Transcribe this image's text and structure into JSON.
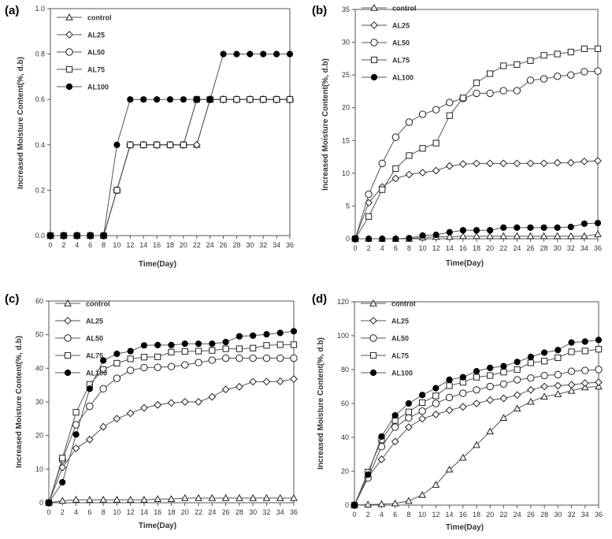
{
  "figure": {
    "colors": {
      "line": "#555555",
      "marker_stroke": "#222222",
      "axis": "#555555",
      "text": "#333333",
      "filled_marker": "#000000",
      "open_marker": "#ffffff"
    }
  },
  "chart_data": [
    {
      "panel": "(a)",
      "type": "line",
      "xlabel": "Time(Day)",
      "ylabel": "Increased Moisture Content(%, d.b)",
      "xlim": [
        0,
        36
      ],
      "ylim": [
        0,
        1.0
      ],
      "xticks": [
        "0",
        "2",
        "4",
        "6",
        "8",
        "10",
        "12",
        "14",
        "16",
        "18",
        "20",
        "22",
        "24",
        "26",
        "28",
        "30",
        "32",
        "34",
        "36"
      ],
      "yticks": [
        "0.0",
        "0.2",
        "0.4",
        "0.6",
        "0.8",
        "1.0"
      ],
      "legend_position": "top-left",
      "x": [
        0,
        2,
        4,
        6,
        8,
        10,
        12,
        14,
        16,
        18,
        20,
        22,
        24,
        26,
        28,
        30,
        32,
        34,
        36
      ],
      "series": [
        {
          "name": "control",
          "marker": "triangle-open",
          "values": [
            0,
            0,
            0,
            0,
            0,
            0.2,
            0.4,
            0.4,
            0.4,
            0.4,
            0.4,
            0.4,
            0.6,
            0.6,
            0.6,
            0.6,
            0.6,
            0.6,
            0.6
          ]
        },
        {
          "name": "AL25",
          "marker": "diamond-open",
          "values": [
            0,
            0,
            0,
            0,
            0,
            0.2,
            0.4,
            0.4,
            0.4,
            0.4,
            0.4,
            0.4,
            0.6,
            0.6,
            0.6,
            0.6,
            0.6,
            0.6,
            0.6
          ]
        },
        {
          "name": "AL50",
          "marker": "circle-open",
          "values": [
            0,
            0,
            0,
            0,
            0,
            0.2,
            0.4,
            0.4,
            0.4,
            0.4,
            0.4,
            0.6,
            0.6,
            0.6,
            0.6,
            0.6,
            0.6,
            0.6,
            0.6
          ]
        },
        {
          "name": "AL75",
          "marker": "square-open",
          "values": [
            0,
            0,
            0,
            0,
            0,
            0.2,
            0.4,
            0.4,
            0.4,
            0.4,
            0.4,
            0.6,
            0.6,
            0.6,
            0.6,
            0.6,
            0.6,
            0.6,
            0.6
          ]
        },
        {
          "name": "AL100",
          "marker": "circle-filled",
          "values": [
            0,
            0,
            0,
            0,
            0,
            0.4,
            0.6,
            0.6,
            0.6,
            0.6,
            0.6,
            0.6,
            0.6,
            0.8,
            0.8,
            0.8,
            0.8,
            0.8,
            0.8
          ]
        }
      ]
    },
    {
      "panel": "(b)",
      "type": "line",
      "xlabel": "Time(Day)",
      "ylabel": "Increased Moisture Content(%, d.b)",
      "xlim": [
        0,
        36
      ],
      "ylim": [
        0,
        35
      ],
      "xticks": [
        "0",
        "2",
        "4",
        "6",
        "8",
        "10",
        "12",
        "14",
        "16",
        "18",
        "20",
        "22",
        "24",
        "26",
        "28",
        "30",
        "32",
        "34",
        "36"
      ],
      "yticks": [
        "0",
        "5",
        "10",
        "15",
        "20",
        "25",
        "30",
        "35"
      ],
      "legend_position": "top-left",
      "x": [
        0,
        2,
        4,
        6,
        8,
        10,
        12,
        14,
        16,
        18,
        20,
        22,
        24,
        26,
        28,
        30,
        32,
        34,
        36
      ],
      "series": [
        {
          "name": "control",
          "marker": "triangle-open",
          "values": [
            0,
            0,
            0,
            0,
            0,
            0.2,
            0.3,
            0.3,
            0.4,
            0.4,
            0.4,
            0.4,
            0.4,
            0.4,
            0.4,
            0.4,
            0.4,
            0.4,
            0.7
          ]
        },
        {
          "name": "AL25",
          "marker": "diamond-open",
          "values": [
            0,
            5.5,
            7.9,
            9.2,
            9.8,
            10.1,
            10.4,
            11.1,
            11.4,
            11.5,
            11.5,
            11.5,
            11.5,
            11.5,
            11.5,
            11.6,
            11.6,
            11.8,
            11.9
          ]
        },
        {
          "name": "AL50",
          "marker": "circle-open",
          "values": [
            0,
            6.8,
            11.5,
            15.5,
            17.8,
            19.0,
            19.7,
            20.8,
            21.4,
            22.2,
            22.2,
            22.6,
            22.6,
            24.2,
            24.4,
            24.8,
            25.0,
            25.5,
            25.6
          ]
        },
        {
          "name": "AL75",
          "marker": "square-open",
          "values": [
            0,
            3.4,
            7.5,
            10.7,
            12.7,
            13.8,
            14.6,
            18.8,
            21.5,
            23.8,
            25.2,
            26.4,
            26.6,
            27.2,
            28.0,
            28.2,
            28.5,
            29.0,
            29.0
          ]
        },
        {
          "name": "AL100",
          "marker": "circle-filled",
          "values": [
            0,
            0,
            0,
            0,
            0.1,
            0.5,
            0.6,
            1.0,
            1.3,
            1.3,
            1.3,
            1.7,
            1.7,
            1.7,
            1.7,
            1.7,
            1.8,
            2.3,
            2.4
          ]
        }
      ]
    },
    {
      "panel": "(c)",
      "type": "line",
      "xlabel": "Time(Day)",
      "ylabel": "Increased Moisture Content(%, d.b)",
      "xlim": [
        0,
        36
      ],
      "ylim": [
        0,
        60
      ],
      "xticks": [
        "0",
        "2",
        "4",
        "6",
        "8",
        "10",
        "12",
        "14",
        "16",
        "18",
        "20",
        "22",
        "24",
        "26",
        "28",
        "30",
        "32",
        "34",
        "36"
      ],
      "yticks": [
        "0",
        "10",
        "20",
        "30",
        "40",
        "50",
        "60"
      ],
      "legend_position": "top-left",
      "x": [
        0,
        2,
        4,
        6,
        8,
        10,
        12,
        14,
        16,
        18,
        20,
        22,
        24,
        26,
        28,
        30,
        32,
        34,
        36
      ],
      "series": [
        {
          "name": "control",
          "marker": "triangle-open",
          "values": [
            0,
            0.6,
            0.9,
            0.9,
            0.9,
            0.9,
            0.9,
            0.9,
            1.1,
            1.1,
            1.4,
            1.4,
            1.4,
            1.4,
            1.4,
            1.4,
            1.4,
            1.4,
            1.4
          ]
        },
        {
          "name": "AL25",
          "marker": "diamond-open",
          "values": [
            0,
            10.5,
            16.2,
            18.8,
            22.6,
            25.0,
            26.6,
            28.2,
            29.1,
            29.7,
            30.0,
            30.0,
            31.5,
            33.7,
            34.5,
            36.0,
            36.0,
            36.1,
            36.8
          ]
        },
        {
          "name": "AL50",
          "marker": "circle-open",
          "values": [
            0,
            12.8,
            23.2,
            28.7,
            33.9,
            37.0,
            39.4,
            40.2,
            40.3,
            40.5,
            41.0,
            41.7,
            42.4,
            43.0,
            43.0,
            43.0,
            43.0,
            43.0,
            43.0
          ]
        },
        {
          "name": "AL75",
          "marker": "square-open",
          "values": [
            0,
            13.3,
            26.9,
            35.2,
            39.6,
            41.5,
            42.8,
            43.3,
            43.4,
            44.8,
            45.0,
            45.1,
            45.3,
            45.8,
            45.8,
            46.0,
            46.8,
            47.0,
            47.0
          ]
        },
        {
          "name": "AL100",
          "marker": "circle-filled",
          "values": [
            0,
            6.1,
            20.3,
            33.9,
            42.3,
            44.3,
            45.1,
            46.8,
            46.9,
            46.9,
            47.3,
            47.3,
            47.3,
            47.8,
            49.5,
            49.7,
            50.1,
            50.5,
            51.0
          ]
        }
      ]
    },
    {
      "panel": "(d)",
      "type": "line",
      "xlabel": "Time(Day)",
      "ylabel": "Increased Moisture Content(%, d.b)",
      "xlim": [
        0,
        36
      ],
      "ylim": [
        0,
        120
      ],
      "xticks": [
        "0",
        "2",
        "4",
        "6",
        "8",
        "10",
        "12",
        "14",
        "16",
        "18",
        "20",
        "22",
        "24",
        "26",
        "28",
        "30",
        "32",
        "34",
        "36"
      ],
      "yticks": [
        "0",
        "20",
        "40",
        "60",
        "80",
        "100",
        "120"
      ],
      "legend_position": "top-left",
      "x": [
        0,
        2,
        4,
        6,
        8,
        10,
        12,
        14,
        16,
        18,
        20,
        22,
        24,
        26,
        28,
        30,
        32,
        34,
        36
      ],
      "series": [
        {
          "name": "control",
          "marker": "triangle-open",
          "values": [
            0,
            0.3,
            0.6,
            1.0,
            2.5,
            6.0,
            12.0,
            21.0,
            28.0,
            35.5,
            43.5,
            51.5,
            57.0,
            61.0,
            64.0,
            65.5,
            67.5,
            69.5,
            70.0
          ]
        },
        {
          "name": "AL25",
          "marker": "diamond-open",
          "values": [
            0,
            16.5,
            27.0,
            37.5,
            46.0,
            51.0,
            53.5,
            56.0,
            58.0,
            60.0,
            62.0,
            63.0,
            65.0,
            68.0,
            70.0,
            70.5,
            71.0,
            72.0,
            72.5
          ]
        },
        {
          "name": "AL50",
          "marker": "circle-open",
          "values": [
            0,
            16.0,
            34.5,
            46.0,
            51.5,
            55.5,
            60.0,
            63.5,
            66.0,
            68.0,
            70.0,
            71.5,
            74.0,
            75.0,
            76.5,
            77.0,
            79.0,
            79.5,
            80.0
          ]
        },
        {
          "name": "AL75",
          "marker": "square-open",
          "values": [
            0,
            19.5,
            38.5,
            50.0,
            55.0,
            60.5,
            64.5,
            70.5,
            72.5,
            75.5,
            76.5,
            78.5,
            80.0,
            84.0,
            85.0,
            87.0,
            90.5,
            91.0,
            92.0
          ]
        },
        {
          "name": "AL100",
          "marker": "circle-filled",
          "values": [
            0,
            18.0,
            40.5,
            53.0,
            60.0,
            65.0,
            69.0,
            74.0,
            75.5,
            79.0,
            81.0,
            82.0,
            84.5,
            87.5,
            90.0,
            91.5,
            96.0,
            96.5,
            97.5
          ]
        }
      ]
    }
  ]
}
